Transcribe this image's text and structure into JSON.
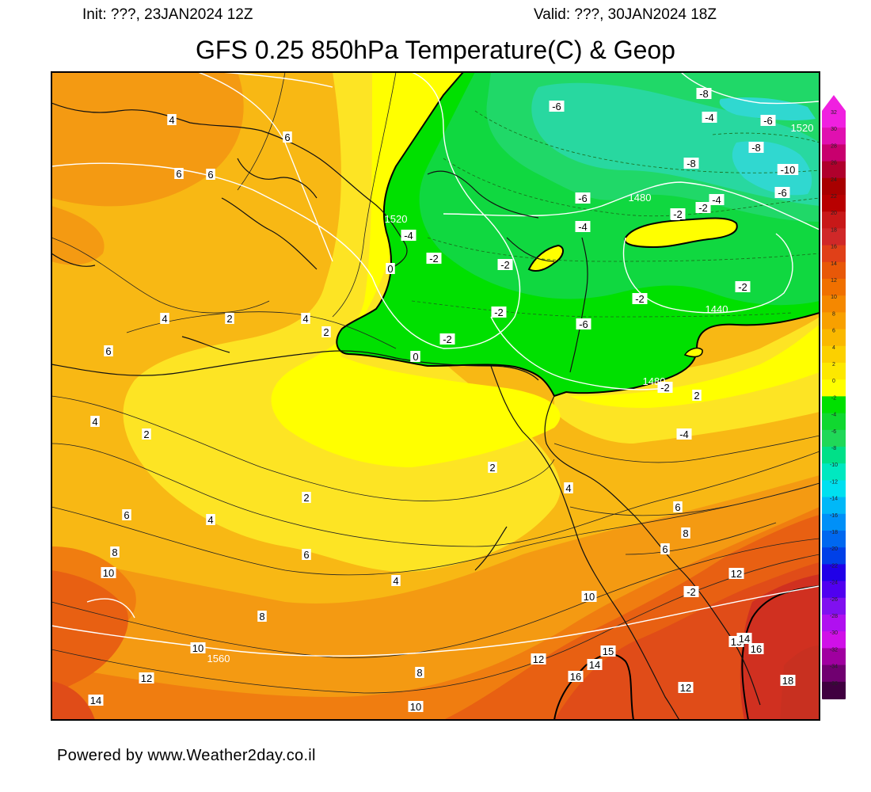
{
  "header": {
    "init": "Init: ???, 23JAN2024 12Z",
    "valid": "Valid: ???, 30JAN2024 18Z"
  },
  "title": "GFS 0.25 850hPa Temperature(C) & Geop",
  "footer": "Powered by www.Weather2day.co.il",
  "colorbar": {
    "ticks": [
      "32",
      "30",
      "28",
      "26",
      "24",
      "22",
      "20",
      "18",
      "16",
      "14",
      "12",
      "10",
      "8",
      "6",
      "4",
      "2",
      "0",
      "-2",
      "-4",
      "-6",
      "-8",
      "-10",
      "-12",
      "-14",
      "-16",
      "-18",
      "-20",
      "-22",
      "-24",
      "-26",
      "-28",
      "-30",
      "-32",
      "-34",
      "-36"
    ],
    "colors": [
      "#f020e0",
      "#e010b0",
      "#c8006e",
      "#b0002c",
      "#a80000",
      "#b80000",
      "#c81818",
      "#d02828",
      "#e04018",
      "#e85808",
      "#f07000",
      "#f58800",
      "#f8a000",
      "#fab800",
      "#fcd000",
      "#fde800",
      "#ffff00",
      "#00e000",
      "#10d830",
      "#20d858",
      "#00e088",
      "#00e8c0",
      "#00e0f0",
      "#00b8f8",
      "#0090f8",
      "#0068f0",
      "#0040e8",
      "#2000e8",
      "#5000f0",
      "#8010f0",
      "#b010f0",
      "#d010e8",
      "#a000a0",
      "#700070",
      "#400040"
    ]
  },
  "map": {
    "legend_colors": {
      "temp_18": "#d03020",
      "temp_14": "#e04c18",
      "temp_12": "#e86012",
      "temp_10": "#f07d10",
      "temp_8": "#f49a12",
      "temp_6": "#f8b814",
      "temp_4": "#fbd020",
      "temp_2": "#fde424",
      "temp_0": "#ffff00",
      "cold_minus2": "#00e000",
      "cold_minus6": "#20d868",
      "cold_minus10": "#30d8d0"
    },
    "temp_labels": [
      "4",
      "6",
      "6",
      "6",
      "4",
      "2",
      "4",
      "2",
      "0",
      "6",
      "4",
      "2",
      "2",
      "4",
      "6",
      "8",
      "10",
      "12",
      "14",
      "10",
      "8",
      "6",
      "8",
      "10",
      "12",
      "16",
      "14",
      "15",
      "12",
      "10",
      "12",
      "15",
      "14",
      "16",
      "18",
      "4",
      "2",
      "4",
      "6",
      "8",
      "6",
      "2",
      "-2",
      "0",
      "-2",
      "-2",
      "-4",
      "-6",
      "-4",
      "-6",
      "-8",
      "-8",
      "-6",
      "-10",
      "-6",
      "-8",
      "-4",
      "0",
      "-2",
      "-2",
      "-4",
      "-2",
      "-2",
      "-6",
      "-2",
      "-4",
      "-2",
      "-2",
      "0"
    ],
    "geop_labels": [
      "1520",
      "1480",
      "1440",
      "1480",
      "1520",
      "1560"
    ]
  }
}
